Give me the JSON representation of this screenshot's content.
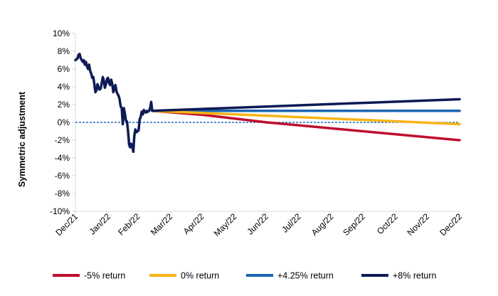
{
  "chart_data": {
    "type": "line",
    "title": "",
    "xlabel": "",
    "ylabel": "Symmetric adjustment",
    "ylim": [
      -10,
      10
    ],
    "yticks": [
      "10%",
      "8%",
      "6%",
      "4%",
      "2%",
      "0%",
      "-2%",
      "-4%",
      "-6%",
      "-8%",
      "-10%"
    ],
    "xlim": [
      "2021-12-31",
      "2022-12-31"
    ],
    "xticks": [
      {
        "label": "Dec/21",
        "date": "2021-12-31"
      },
      {
        "label": "Jan/22",
        "date": "2022-01-31"
      },
      {
        "label": "Feb/22",
        "date": "2022-02-28"
      },
      {
        "label": "Mar/22",
        "date": "2022-03-31"
      },
      {
        "label": "Apr/22",
        "date": "2022-04-30"
      },
      {
        "label": "May/22",
        "date": "2022-05-31"
      },
      {
        "label": "Jun/22",
        "date": "2022-06-30"
      },
      {
        "label": "Jul/22",
        "date": "2022-07-31"
      },
      {
        "label": "Aug/22",
        "date": "2022-08-31"
      },
      {
        "label": "Sep/22",
        "date": "2022-09-30"
      },
      {
        "label": "Oct/22",
        "date": "2022-10-31"
      },
      {
        "label": "Nov/22",
        "date": "2022-11-30"
      },
      {
        "label": "Dec/22",
        "date": "2022-12-31"
      }
    ],
    "grid": false,
    "zero_line": {
      "y": 0,
      "style": "dashed",
      "color": "#1f6fb5"
    },
    "legend": {
      "position": "bottom"
    },
    "historical": {
      "color": "#0d1a55",
      "points": [
        [
          "2021-12-31",
          7.0
        ],
        [
          "2022-01-02",
          7.2
        ],
        [
          "2022-01-03",
          7.6
        ],
        [
          "2022-01-04",
          7.7
        ],
        [
          "2022-01-05",
          7.2
        ],
        [
          "2022-01-06",
          7.0
        ],
        [
          "2022-01-07",
          6.8
        ],
        [
          "2022-01-08",
          7.0
        ],
        [
          "2022-01-09",
          6.5
        ],
        [
          "2022-01-10",
          6.8
        ],
        [
          "2022-01-11",
          6.3
        ],
        [
          "2022-01-12",
          6.0
        ],
        [
          "2022-01-13",
          6.5
        ],
        [
          "2022-01-14",
          5.8
        ],
        [
          "2022-01-15",
          5.5
        ],
        [
          "2022-01-16",
          5.0
        ],
        [
          "2022-01-17",
          5.1
        ],
        [
          "2022-01-18",
          4.3
        ],
        [
          "2022-01-19",
          3.4
        ],
        [
          "2022-01-20",
          3.6
        ],
        [
          "2022-01-21",
          4.3
        ],
        [
          "2022-01-22",
          3.9
        ],
        [
          "2022-01-23",
          3.7
        ],
        [
          "2022-01-24",
          3.8
        ],
        [
          "2022-01-25",
          4.4
        ],
        [
          "2022-01-26",
          5.1
        ],
        [
          "2022-01-27",
          4.7
        ],
        [
          "2022-01-28",
          3.9
        ],
        [
          "2022-01-29",
          4.3
        ],
        [
          "2022-01-30",
          4.9
        ],
        [
          "2022-01-31",
          5.0
        ],
        [
          "2022-02-01",
          4.4
        ],
        [
          "2022-02-02",
          4.2
        ],
        [
          "2022-02-03",
          4.8
        ],
        [
          "2022-02-04",
          4.3
        ],
        [
          "2022-02-05",
          3.4
        ],
        [
          "2022-02-06",
          3.9
        ],
        [
          "2022-02-07",
          4.2
        ],
        [
          "2022-02-08",
          3.5
        ],
        [
          "2022-02-09",
          3.2
        ],
        [
          "2022-02-10",
          3.0
        ],
        [
          "2022-02-11",
          2.6
        ],
        [
          "2022-02-12",
          1.8
        ],
        [
          "2022-02-13",
          1.6
        ],
        [
          "2022-02-14",
          -0.2
        ],
        [
          "2022-02-15",
          1.6
        ],
        [
          "2022-02-16",
          1.0
        ],
        [
          "2022-02-17",
          0.2
        ],
        [
          "2022-02-18",
          0.1
        ],
        [
          "2022-02-19",
          -1.0
        ],
        [
          "2022-02-20",
          -2.5
        ],
        [
          "2022-02-21",
          -2.8
        ],
        [
          "2022-02-22",
          -2.4
        ],
        [
          "2022-02-23",
          -2.7
        ],
        [
          "2022-02-24",
          -3.3
        ],
        [
          "2022-02-25",
          -1.5
        ],
        [
          "2022-02-26",
          -0.8
        ],
        [
          "2022-02-27",
          -1.1
        ],
        [
          "2022-02-28",
          -1.0
        ],
        [
          "2022-03-01",
          -0.9
        ],
        [
          "2022-03-02",
          0.3
        ],
        [
          "2022-03-03",
          0.6
        ],
        [
          "2022-03-04",
          1.2
        ],
        [
          "2022-03-05",
          0.9
        ],
        [
          "2022-03-06",
          1.4
        ],
        [
          "2022-03-07",
          1.2
        ],
        [
          "2022-03-08",
          1.1
        ],
        [
          "2022-03-09",
          1.3
        ],
        [
          "2022-03-10",
          1.2
        ],
        [
          "2022-03-11",
          1.3
        ],
        [
          "2022-03-12",
          1.6
        ],
        [
          "2022-03-13",
          2.3
        ],
        [
          "2022-03-14",
          1.3
        ]
      ]
    },
    "series": [
      {
        "name": "-5% return",
        "color": "#c00d2e",
        "points": [
          [
            "2022-03-14",
            1.3
          ],
          [
            "2022-05-01",
            0.85
          ],
          [
            "2022-07-01",
            0.0
          ],
          [
            "2022-12-31",
            -2.0
          ]
        ]
      },
      {
        "name": "0% return",
        "color": "#f7b416",
        "points": [
          [
            "2022-03-14",
            1.3
          ],
          [
            "2022-07-01",
            0.75
          ],
          [
            "2022-12-31",
            -0.2
          ]
        ]
      },
      {
        "name": "+4.25% return",
        "color": "#1a66b3",
        "points": [
          [
            "2022-03-14",
            1.3
          ],
          [
            "2022-12-31",
            1.3
          ]
        ]
      },
      {
        "name": "+8% return",
        "color": "#0d1a55",
        "points": [
          [
            "2022-03-14",
            1.3
          ],
          [
            "2022-12-31",
            2.6
          ]
        ]
      }
    ]
  }
}
